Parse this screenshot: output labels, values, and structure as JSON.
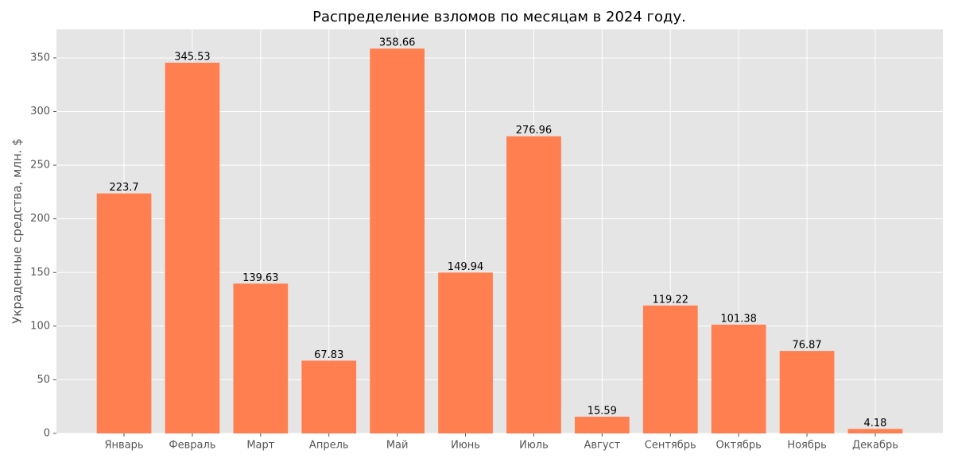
{
  "chart_data": {
    "type": "bar",
    "title": "Распределение взломов по месяцам в 2024 году.",
    "y_label": "Украденные средства, млн. $",
    "categories": [
      "Январь",
      "Февраль",
      "Март",
      "Апрель",
      "Май",
      "Июнь",
      "Июль",
      "Август",
      "Сентябрь",
      "Октябрь",
      "Ноябрь",
      "Декабрь"
    ],
    "values": [
      223.7,
      345.53,
      139.63,
      67.83,
      358.66,
      149.94,
      276.96,
      15.59,
      119.22,
      101.38,
      76.87,
      4.18
    ],
    "color": "#ff7f50",
    "ylim": [
      0,
      376.59
    ],
    "yticks": [
      0,
      50,
      100,
      150,
      200,
      250,
      300,
      350
    ],
    "grid": true
  }
}
